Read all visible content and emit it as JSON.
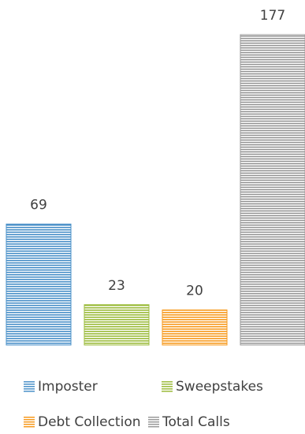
{
  "chart_data": {
    "type": "bar",
    "categories": [
      "Imposter",
      "Sweepstakes",
      "Debt Collection",
      "Total Calls"
    ],
    "values": [
      69,
      23,
      20,
      177
    ],
    "data_labels": [
      "69",
      "23",
      "20",
      "177"
    ],
    "colors": [
      "#4a90c8",
      "#9bbb3b",
      "#f79a1e",
      "#9a9a9a"
    ],
    "grid": false,
    "legend": "bottom",
    "title": "",
    "xlabel": "",
    "ylabel": ""
  }
}
